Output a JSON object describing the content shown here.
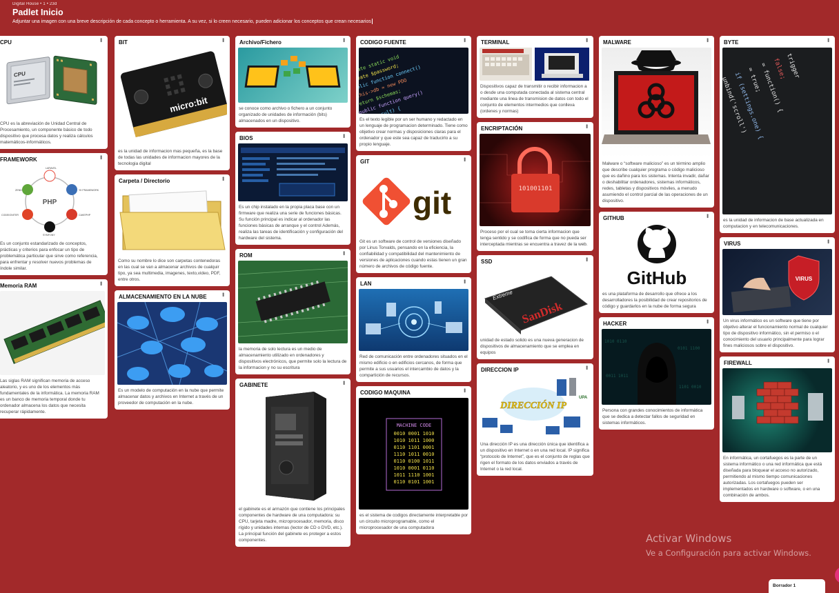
{
  "header": {
    "meta": "Digital House  •  1  •  23d",
    "title": "Padlet Inicio",
    "description": "Adjuntar una imagen con una breve descripción de cada concepto o herramienta. A su vez, si lo creen necesario, pueden adicionar los conceptos que crean necesarios"
  },
  "posts": {
    "cpu": {
      "title": "CPU",
      "body": "CPU es la abreviación de Unidad Central de Procesamiento, un componente básico de todo dispositivo que procesa datos y realiza cálculos matemáticos-informáticos."
    },
    "framework": {
      "title": "FRAMEWORK",
      "body": "Es un conjunto estandarizado de conceptos, prácticas y criterios para enfocar un tipo de problemática particular que sirve como referencia, para enfrentar y resolver nuevos problemas de índole similar."
    },
    "ram": {
      "title": "Memoria RAM",
      "body": "Las siglas RAM significan memoria de acceso aleatorio, y es uno de los elementos más fundamentales de la informática. La memoria RAM es un banco de memoria temporal donde tu ordenador almacena los datos que necesita recuperar rápidamente."
    },
    "bit": {
      "title": "BIT",
      "body": "es la unidad de informacion mas pequeña, es la base de todas las unidades de informacion mayores de la tecnologia digital"
    },
    "carpeta": {
      "title": "Carpeta / Directorio",
      "body": "Como su nombre lo dice son carpetas contenedoras en las cual se van a almacenar archivos de cualquir tipo, ya sea multimedia, imagenes, texto,video, PDF, entre otros."
    },
    "nube": {
      "title": "ALMACENAMIENTO EN LA NUBE",
      "body": "Es un modelo de computación en la nube que permite almacenar datos y archivos en Internet a través de un proveedor de computación en la nube."
    },
    "archivo": {
      "title": "Archivo/Fichero",
      "body": "se conoce como archivo o fichero a un conjunto organizado de unidades de información (bits) almacenados en un dispositivo."
    },
    "bios": {
      "title": "BIOS",
      "body": "Es un chip instalado en la propia placa base con un firmware que realiza una serie de funciones básicas. Su función principal es indicar al ordenador las funciones básicas de arranque y el control Además, realiza las tareas de identificación y configuración del hardware del sistema."
    },
    "rom": {
      "title": "ROM",
      "body": "la memoria de solo lectura es un medio de almacenamiento utilizado en ordenadores y dispositivos electrónicos, que permite solo la lectura de la informacion y no su escritura"
    },
    "gabinete": {
      "title": "GABINETE",
      "body": "el gabinete es el armazón que contiene los principales componentes de hardware de una computadora: su CPU, tarjeta madre, microprocesador, memoria, disco rígido y unidades internas (lector de CD o DVD, etc.). La principal función del gabinete es proteger a estos componentes."
    },
    "codigo_fuente": {
      "title": "CODIGO FUENTE",
      "body": "Es el texto legible por un ser humano y redactado en un lenguaje de programacion determinado. Tiene como objetivo crear normas y disposiciones claras para el ordenador y que este sea capaz de traducirlo a su propio lenguaje."
    },
    "git": {
      "title": "GIT",
      "logo": "git",
      "body": "Git es un software de control de versiones diseñado por Linus Torvalds, pensando en la eficiencia, la confiabilidad y compatibilidad del mantenimiento de versiones de aplicaciones cuando estas tienen un gran número de archivos de código fuente."
    },
    "lan": {
      "title": "LAN",
      "body": "Red de comunicación entre ordenadores situados en el mismo edificio o en edificios cercanos, de forma que permite a sus usuarios el intercambio de datos y la compartición de recursos."
    },
    "codigo_maquina": {
      "title": "CODIGO MAQUINA",
      "image_title": "MACHINE CODE",
      "image_rows": [
        "0010 0001 1010",
        "1010 1011 1000",
        "0110 1101 0001",
        "1110 1011 0010",
        "0110 0100 1011",
        "1010 0001 0110",
        "1011 1110 1001",
        "0110 0101 1001"
      ],
      "body": "es el sistema de codigos directamente interpretable por un circuito microprogramable, como el microprocesador de una computadora"
    },
    "terminal": {
      "title": "TERMINAL",
      "body": "Dispositivos capaz de transmitir o recibir informacion a o desde una computada conectada al sistema central mediante una linea de transmision de datos con todo el conjunto de elementos intermedios que conlleva (ordenes y normas)"
    },
    "encriptacion": {
      "title": "ENCRIPTACIÓN",
      "image_text": "101001101",
      "body": "Proceso por el cual se toma cierta informacion que tenga sentido y se codifica de forma que no pueda ser interceptada mientras se encuentra a travez de la web."
    },
    "ssd": {
      "title": "SSD",
      "image_brand": "SanDisk",
      "image_sub": "Extreme",
      "body": "unidad de estado solido es una nueva generacion de dispositivos de almacenamiento que se emplea en equipos"
    },
    "ip": {
      "title": "DIRECCION IP",
      "image_text": "DIRECCIÓN IP",
      "image_badge": "UPA",
      "body": "Una dirección IP es una dirección única que identifica a un dispositivo en Internet o en una red local. IP significa “protocolo de Internet”, que es el conjunto de reglas que rigen el formato de los datos enviados a través de Internet o la red local."
    },
    "malware": {
      "title": "MALWARE",
      "body": "Malware o “software malicioso” es un término amplio que describe cualquier programa o código malicioso que es dañino para los sistemas. Intenta invadir, dañar o deshabilitar ordenadores, sistemas informáticos, redes, tabletas y dispositivos móviles, a menudo asumiendo el control parcial de las operaciones de un dispositivo."
    },
    "github": {
      "title": "GITHUB",
      "logo": "GitHub",
      "body": "es una plataforma de desarrollo que ofrece a los desarrolladores la posibilidad de crear repositorios de código y guardarlos en la nube de forma segura"
    },
    "hacker": {
      "title": "HACKER",
      "body": "Persona con grandes conocimientos de informática que se dedica a detectar fallos de seguridad en sistemas informáticos."
    },
    "byte": {
      "title": "BYTE",
      "image_code": [
        "trigger",
        "false;",
        "= function() {",
        "= true;",
        "if (settings.one) {",
        "unbind('scroll')"
      ],
      "body": "es la unidad de informacion de base actualizada en computacion y en telecomunicaciones."
    },
    "virus": {
      "title": "VIRUS",
      "image_badge": "VIRUS",
      "body": "Un virus informático es un software que tiene por objetivo alterar el funcionamiento normal de cualquier tipo de dispositivo informático, sin el permiso o el conocimiento del usuario principalmente para lograr fines maliciosos sobre el dispositivo."
    },
    "firewall": {
      "title": "FIREWALL",
      "body": "En informática, un cortafuegos es la parte de un sistema informático o una red informática que está diseñada para bloquear el acceso no autorizado, permitiendo al mismo tiempo comunicaciones autorizadas. Los cortafuegos pueden ser implementados en hardware o software, o en una combinación de ambos."
    }
  },
  "images": {
    "cpu_chip_label": "CPU",
    "bit_board_text": "micro:bit",
    "php_diagram": {
      "center": "PHP",
      "nodes": [
        "LARAVEL",
        "YII FRAMEWORK",
        "CAKEPHP",
        "SYMFONY",
        "CODEIGNITER",
        "ZEND"
      ]
    }
  },
  "footer": {
    "activate_title": "Activar Windows",
    "activate_sub": "Ve a Configuración para activar Windows.",
    "draft_label": "Borrador 1"
  },
  "colors": {
    "background": "#a2292a",
    "card": "#ffffff",
    "accent_fab": "#e2317a"
  }
}
